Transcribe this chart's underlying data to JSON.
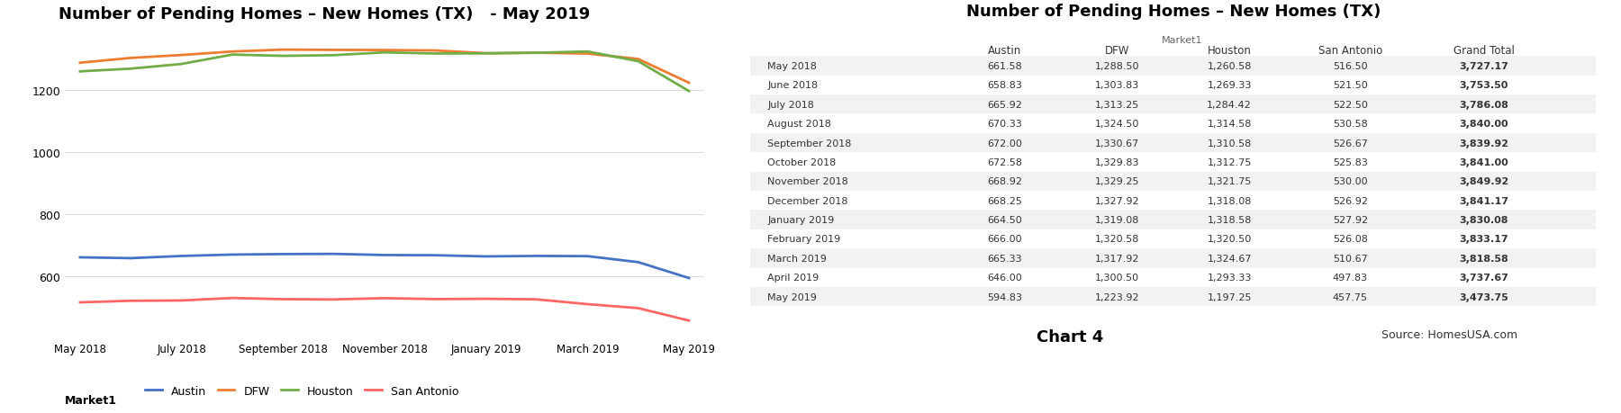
{
  "title_chart": "Number of Pending Homes – New Homes (TX)   - May 2019",
  "title_table": "Number of Pending Homes – New Homes (TX)",
  "months": [
    "May 2018",
    "June 2018",
    "July 2018",
    "August 2018",
    "September 2018",
    "October 2018",
    "November 2018",
    "December 2018",
    "January 2019",
    "February 2019",
    "March 2019",
    "April 2019",
    "May 2019"
  ],
  "austin": [
    661.58,
    658.83,
    665.92,
    670.33,
    672.0,
    672.58,
    668.92,
    668.25,
    664.5,
    666.0,
    665.33,
    646.0,
    594.83
  ],
  "dfw": [
    1288.5,
    1303.83,
    1313.25,
    1324.5,
    1330.67,
    1329.83,
    1329.25,
    1327.92,
    1319.08,
    1320.58,
    1317.92,
    1300.5,
    1223.92
  ],
  "houston": [
    1260.58,
    1269.33,
    1284.42,
    1314.58,
    1310.58,
    1312.75,
    1321.75,
    1318.08,
    1318.58,
    1320.5,
    1324.67,
    1293.33,
    1197.25
  ],
  "san_antonio": [
    516.5,
    521.5,
    522.5,
    530.58,
    526.67,
    525.83,
    530.0,
    526.92,
    527.92,
    526.08,
    510.67,
    497.83,
    457.75
  ],
  "grand_total": [
    3727.17,
    3753.5,
    3786.08,
    3840.0,
    3839.92,
    3841.0,
    3849.92,
    3841.17,
    3830.08,
    3833.17,
    3818.58,
    3737.67,
    3473.75
  ],
  "color_austin": "#4472C4",
  "color_dfw": "#ED7D31",
  "color_houston": "#70AD47",
  "color_san_antonio": "#FF6666",
  "x_tick_labels": [
    "May 2018",
    "July 2018",
    "September 2018",
    "November 2018",
    "January 2019",
    "March 2019",
    "May 2019"
  ],
  "ylim_min": 400,
  "ylim_max": 1400,
  "yticks": [
    600,
    800,
    1000,
    1200
  ],
  "chart4_label": "Chart 4",
  "source_label": "Source: HomesUSA.com",
  "market1_label": "Market1",
  "bg_color": "#FFFFFF",
  "grid_color": "#DDDDDD",
  "table_header_color": "#FFFFFF",
  "table_stripe_color": "#F2F2F2"
}
